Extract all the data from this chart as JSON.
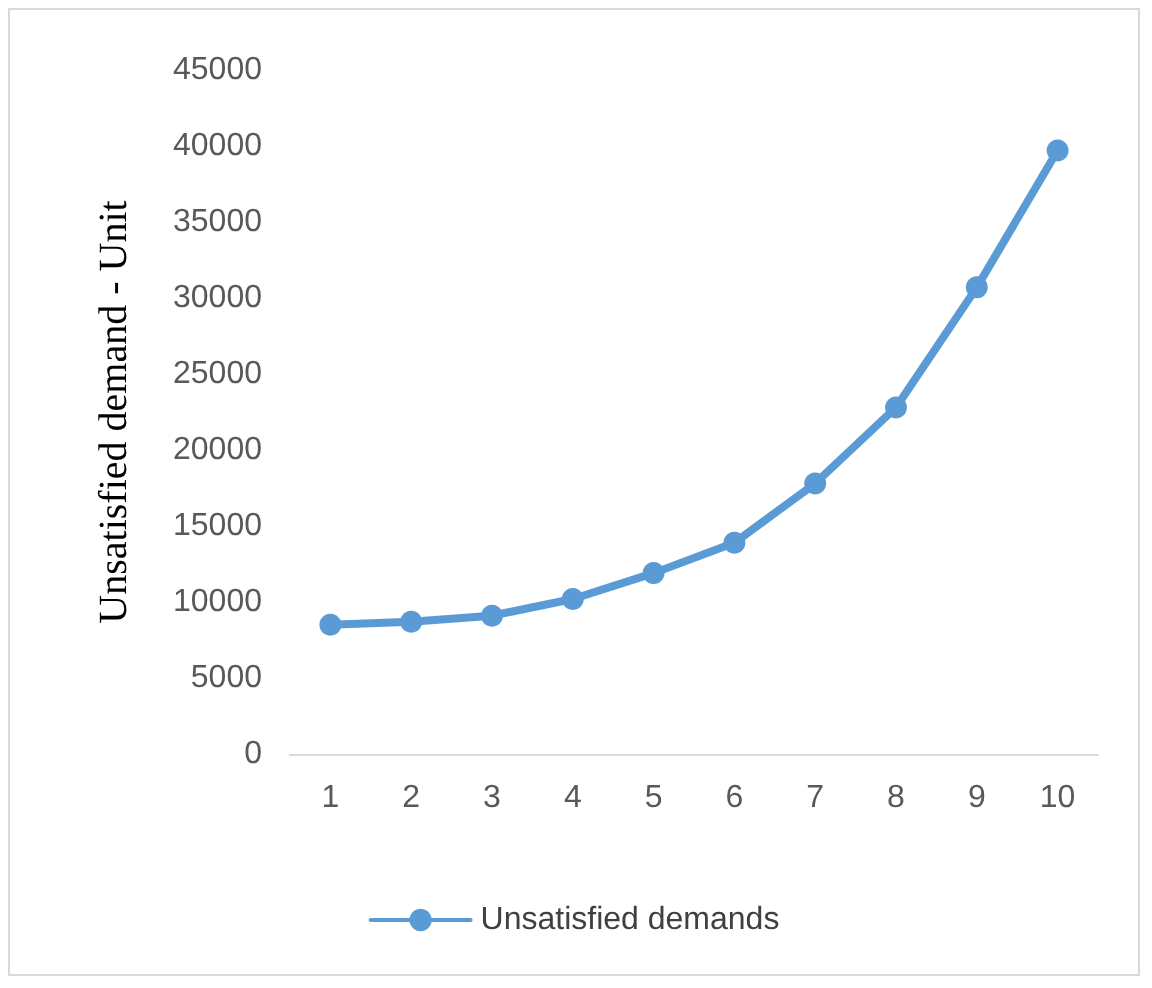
{
  "chart_data": {
    "type": "line",
    "ylabel": "Unsatisfied demand - Unit",
    "categories": [
      "1",
      "2",
      "3",
      "4",
      "5",
      "6",
      "7",
      "8",
      "9",
      "10"
    ],
    "series": [
      {
        "name": "Unsatisfied demands",
        "color": "#5b9bd5",
        "values": [
          8500,
          8700,
          9100,
          10200,
          11900,
          13900,
          17800,
          22800,
          30700,
          39700
        ]
      }
    ],
    "ylim": [
      0,
      45000
    ],
    "yticks": [
      0,
      5000,
      10000,
      15000,
      20000,
      25000,
      30000,
      35000,
      40000,
      45000
    ],
    "grid": false,
    "legend": "bottom",
    "marker": "circle",
    "line_style": "solid"
  }
}
